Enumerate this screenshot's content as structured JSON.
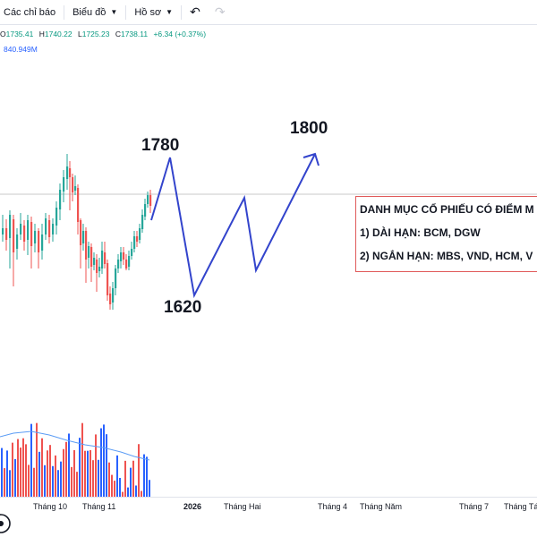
{
  "toolbar": {
    "indicators_label": "Các chỉ báo",
    "chart_label": "Biểu đồ",
    "profile_label": "Hồ sơ"
  },
  "ohlc": {
    "o_label": "O",
    "o_value": "1735.41",
    "h_label": "H",
    "h_value": "1740.22",
    "l_label": "L",
    "l_value": "1725.23",
    "c_label": "C",
    "c_value": "1738.11",
    "change": "+6.34 (+0.37%)",
    "color": "#089981"
  },
  "volume_value": "840.949M",
  "annotations": {
    "label_1780": "1780",
    "label_1800": "1800",
    "label_1620": "1620",
    "line_color": "#3344cc"
  },
  "info_box": {
    "title": "DANH MỤC CỔ PHIẾU CÓ ĐIỂM M",
    "long_term": "1) DÀI HẠN: BCM, DGW",
    "short_term": "2) NGẮN HẠN: MBS, VND, HCM, V",
    "border_color": "#e05a5a"
  },
  "x_axis": {
    "thang10": "Tháng 10",
    "thang11": "Tháng 11",
    "y2026": "2026",
    "thanghai": "Tháng Hai",
    "thang4": "Tháng 4",
    "thangnam": "Tháng Năm",
    "thang7": "Tháng 7",
    "thangtam": "Tháng Tá"
  },
  "colors": {
    "up": "#26a69a",
    "down": "#ef5350",
    "volume_up": "#2962ff",
    "volume_down": "#ef5350",
    "ma_line": "#5b9cf5"
  }
}
